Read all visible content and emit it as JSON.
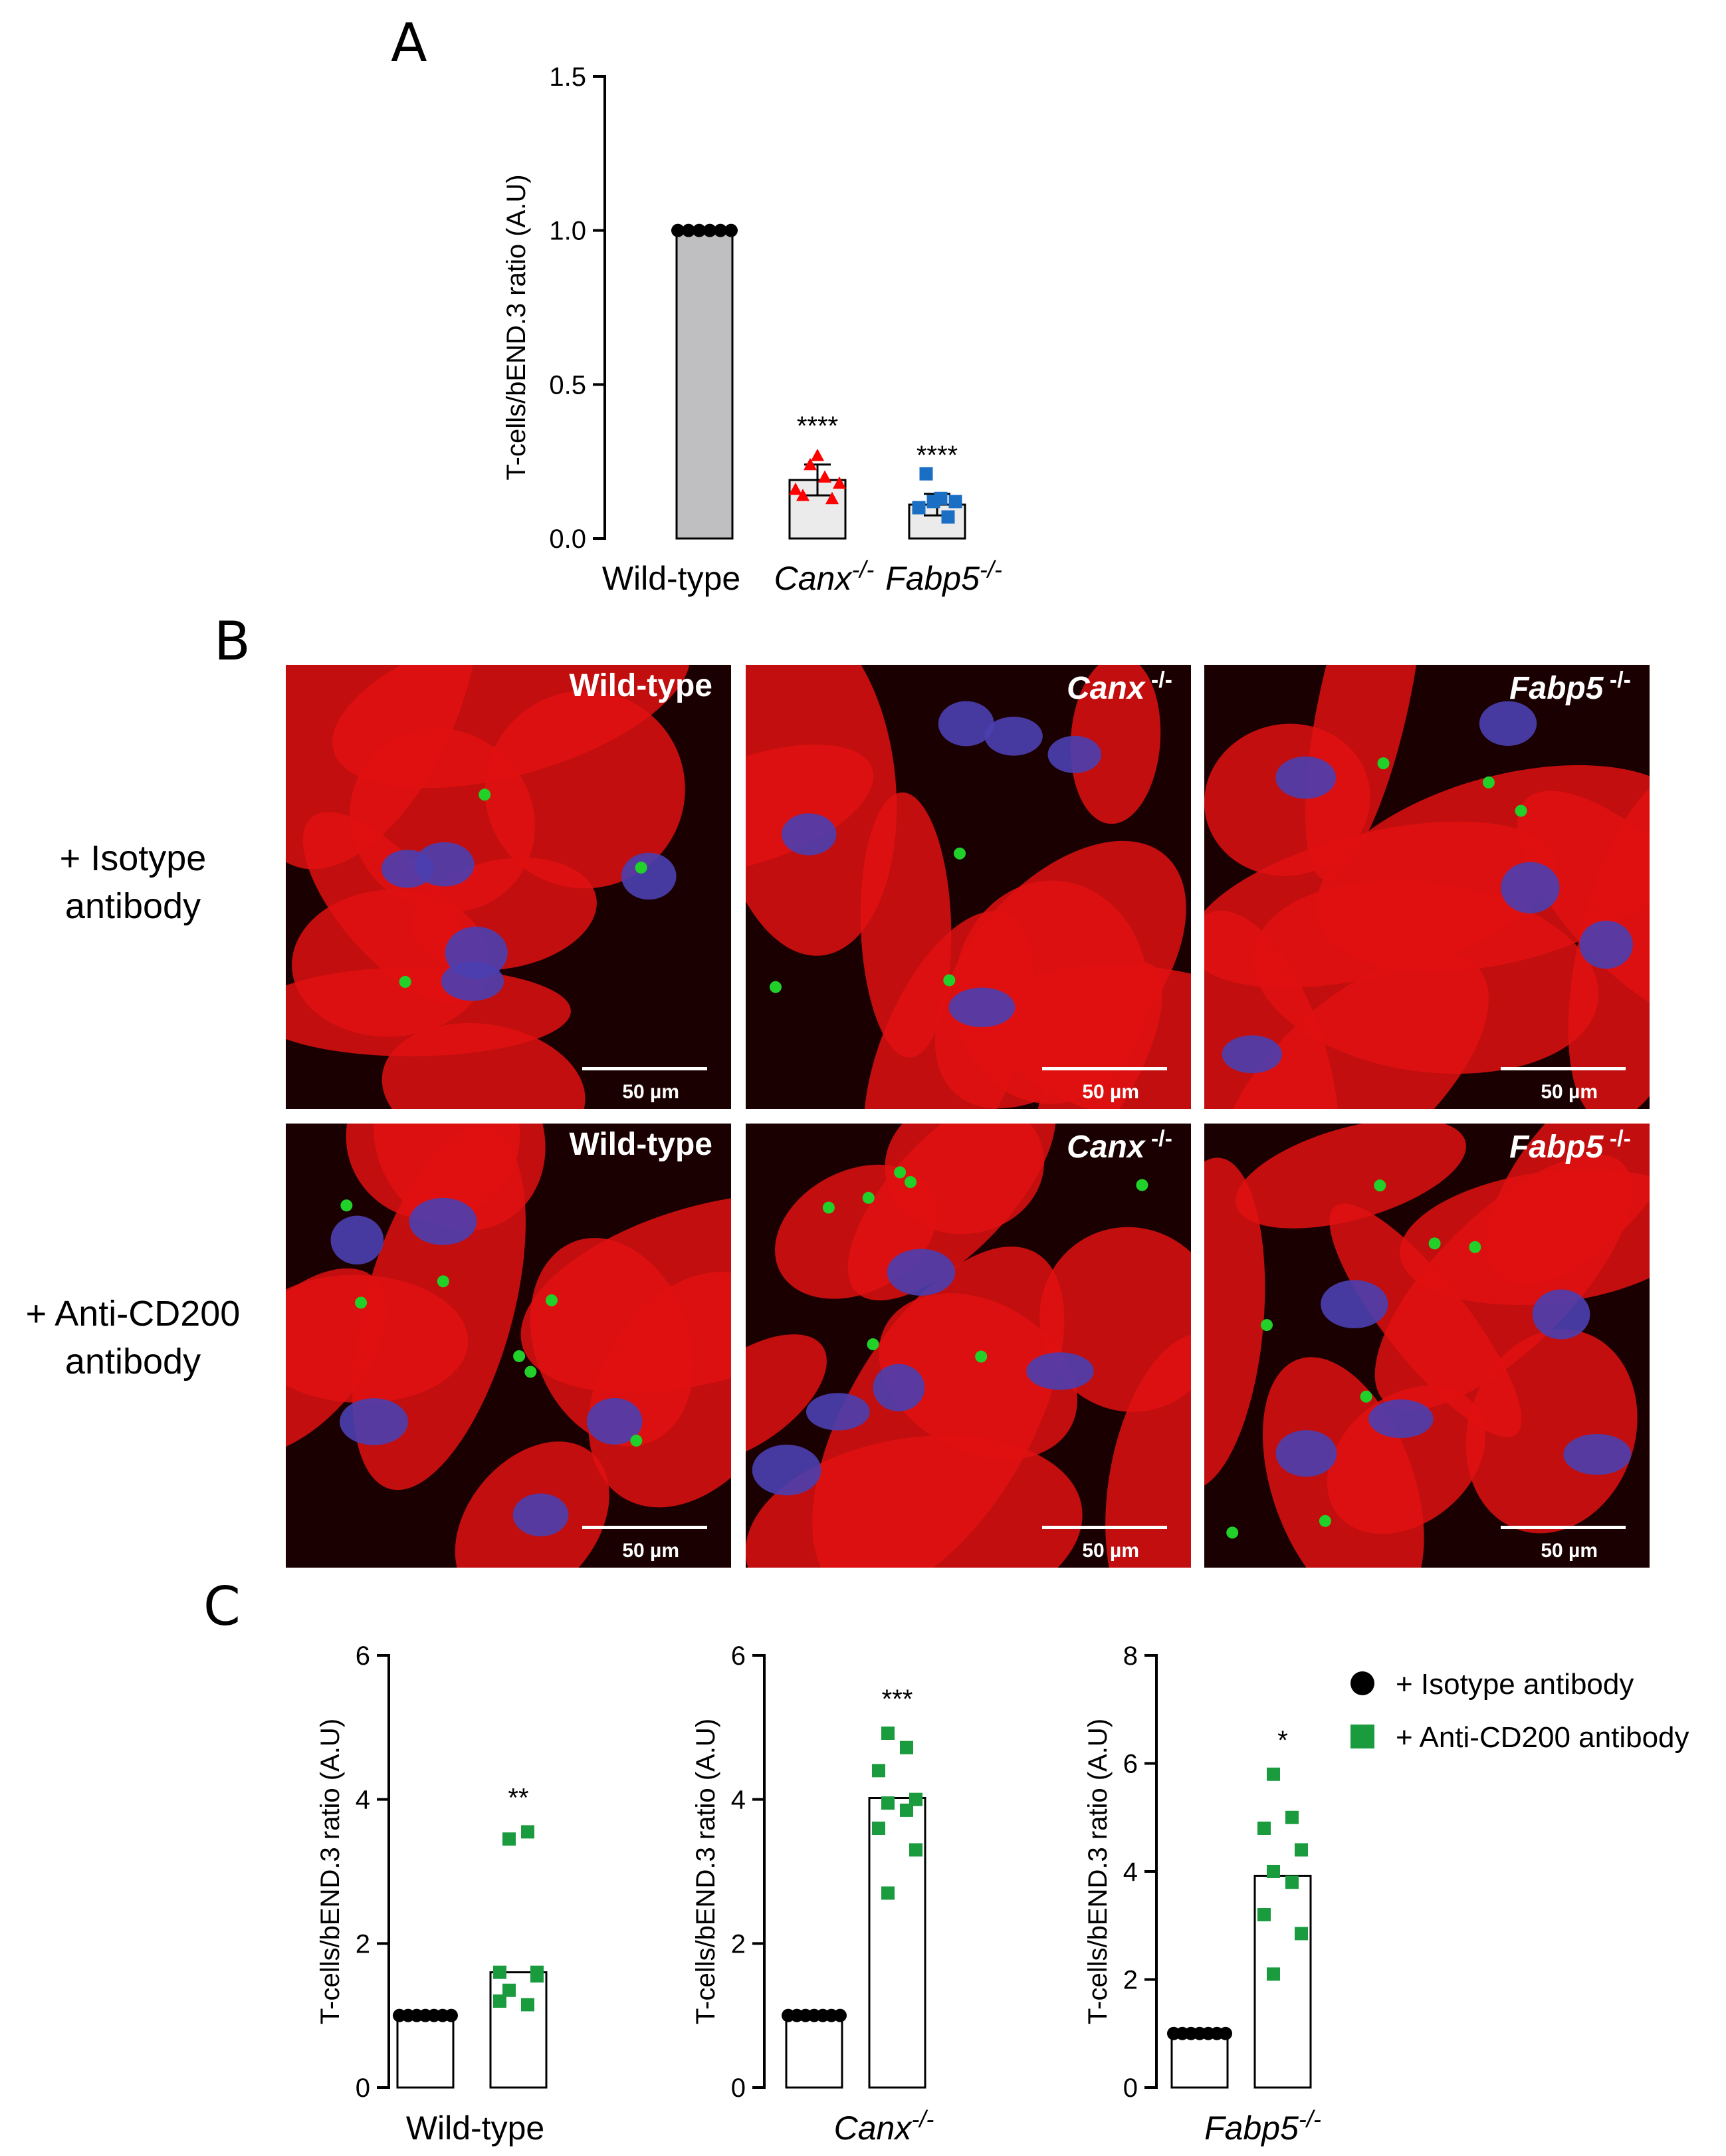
{
  "panels": {
    "a": "A",
    "b": "B",
    "c": "C"
  },
  "chart_data": [
    {
      "type": "bar",
      "panel": "A",
      "ylabel": "T-cells/bEND.3 ratio (A.U)",
      "ylim": [
        0,
        1.5
      ],
      "yticks": [
        "0.0",
        "0.5",
        "1.0",
        "1.5"
      ],
      "yticks_values": [
        0,
        0.5,
        1.0,
        1.5
      ],
      "categories": [
        "Wild-type",
        "Canx",
        "Fabp5"
      ],
      "category_suffix": [
        "",
        "-/-",
        "-/-"
      ],
      "values": [
        1.0,
        0.19,
        0.11
      ],
      "errors": [
        0,
        0.05,
        0.035
      ],
      "bar_colors": [
        "#bfbfc1",
        "#ebebeb",
        "#ebebeb"
      ],
      "point_colors": [
        "#000000",
        "#ff0000",
        "#1a6fc4"
      ],
      "point_shapes": [
        "circle",
        "triangle",
        "square"
      ],
      "points": [
        [
          1.0,
          1.0,
          1.0,
          1.0,
          1.0,
          1.0
        ],
        [
          0.16,
          0.14,
          0.24,
          0.27,
          0.2,
          0.13,
          0.18
        ],
        [
          0.1,
          0.21,
          0.12,
          0.13,
          0.07,
          0.12
        ]
      ],
      "significance": [
        "",
        "****",
        "****"
      ]
    },
    {
      "type": "bar",
      "panel": "C",
      "ylabel": "T-cells/bEND.3 ratio (A.U)",
      "ylim": [
        0,
        6
      ],
      "yticks": [
        "0",
        "2",
        "4",
        "6"
      ],
      "yticks_values": [
        0,
        2,
        4,
        6
      ],
      "xlabel": "Wild-type",
      "xlabel_suffix": "",
      "values": [
        1.0,
        1.6
      ],
      "points": [
        [
          1.0,
          1.0,
          1.0,
          1.0,
          1.0,
          1.0,
          1.0
        ],
        [
          3.45,
          3.55,
          1.6,
          1.55,
          1.35,
          1.15,
          1.2,
          1.6
        ]
      ],
      "significance": "**"
    },
    {
      "type": "bar",
      "panel": "C",
      "ylabel": "T-cells/bEND.3 ratio (A.U)",
      "ylim": [
        0,
        6
      ],
      "yticks": [
        "0",
        "2",
        "4",
        "6"
      ],
      "yticks_values": [
        0,
        2,
        4,
        6
      ],
      "xlabel": "Canx",
      "xlabel_suffix": "-/-",
      "values": [
        1.0,
        4.02
      ],
      "points": [
        [
          1.0,
          1.0,
          1.0,
          1.0,
          1.0,
          1.0,
          1.0
        ],
        [
          4.92,
          4.72,
          4.4,
          4.0,
          3.95,
          3.85,
          3.6,
          3.3,
          2.7
        ]
      ],
      "significance": "***"
    },
    {
      "type": "bar",
      "panel": "C",
      "ylabel": "T-cells/bEND.3 ratio (A.U)",
      "ylim": [
        0,
        8
      ],
      "yticks": [
        "0",
        "2",
        "4",
        "6",
        "8"
      ],
      "yticks_values": [
        0,
        2,
        4,
        6,
        8
      ],
      "xlabel": "Fabp5",
      "xlabel_suffix": "-/-",
      "values": [
        1.0,
        3.92
      ],
      "points": [
        [
          1.0,
          1.0,
          1.0,
          1.0,
          1.0,
          1.0,
          1.0
        ],
        [
          5.8,
          5.0,
          4.8,
          4.4,
          4.0,
          3.8,
          3.2,
          2.85,
          2.1
        ]
      ],
      "significance": "*"
    }
  ],
  "legend": {
    "placement": "top-right",
    "items": [
      {
        "label": "+ Isotype antibody",
        "color": "#000000",
        "shape": "circle"
      },
      {
        "label": "+ Anti-CD200 antibody",
        "color": "#1a9c3e",
        "shape": "square"
      }
    ]
  },
  "microscopy": {
    "row_labels": [
      [
        "+ Isotype",
        "antibody"
      ],
      [
        "+ Anti-CD200",
        "antibody"
      ]
    ],
    "columns": [
      {
        "name": "Wild-type",
        "suffix": ""
      },
      {
        "name": "Canx",
        "suffix": "-/-"
      },
      {
        "name": "Fabp5",
        "suffix": "-/-"
      }
    ],
    "scale_bar": "50 µm"
  }
}
